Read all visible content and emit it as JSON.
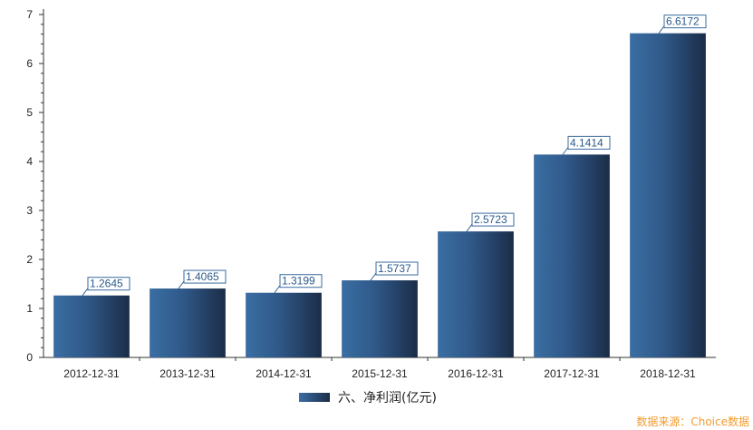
{
  "chart_data": {
    "type": "bar",
    "categories": [
      "2012-12-31",
      "2013-12-31",
      "2014-12-31",
      "2015-12-31",
      "2016-12-31",
      "2017-12-31",
      "2018-12-31"
    ],
    "series": [
      {
        "name": "六、净利润(亿元)",
        "values": [
          1.2645,
          1.4065,
          1.3199,
          1.5737,
          2.5723,
          4.1414,
          6.6172
        ]
      }
    ],
    "data_labels": [
      "1.2645",
      "1.4065",
      "1.3199",
      "1.5737",
      "2.5723",
      "4.1414",
      "6.6172"
    ],
    "ylim": [
      0,
      7
    ],
    "yticks": [
      "0",
      "1",
      "2",
      "3",
      "4",
      "5",
      "6",
      "7"
    ],
    "legend_position": "bottom-center",
    "grid": false
  },
  "source_text": "数据来源：Choice数据",
  "colors": {
    "bar_dark": "#1c2f4a",
    "bar_light": "#3a6b9e",
    "label_border": "#3a6b9e",
    "label_text": "#2c5a8a",
    "source": "#f29b2e",
    "axis": "#333333"
  }
}
